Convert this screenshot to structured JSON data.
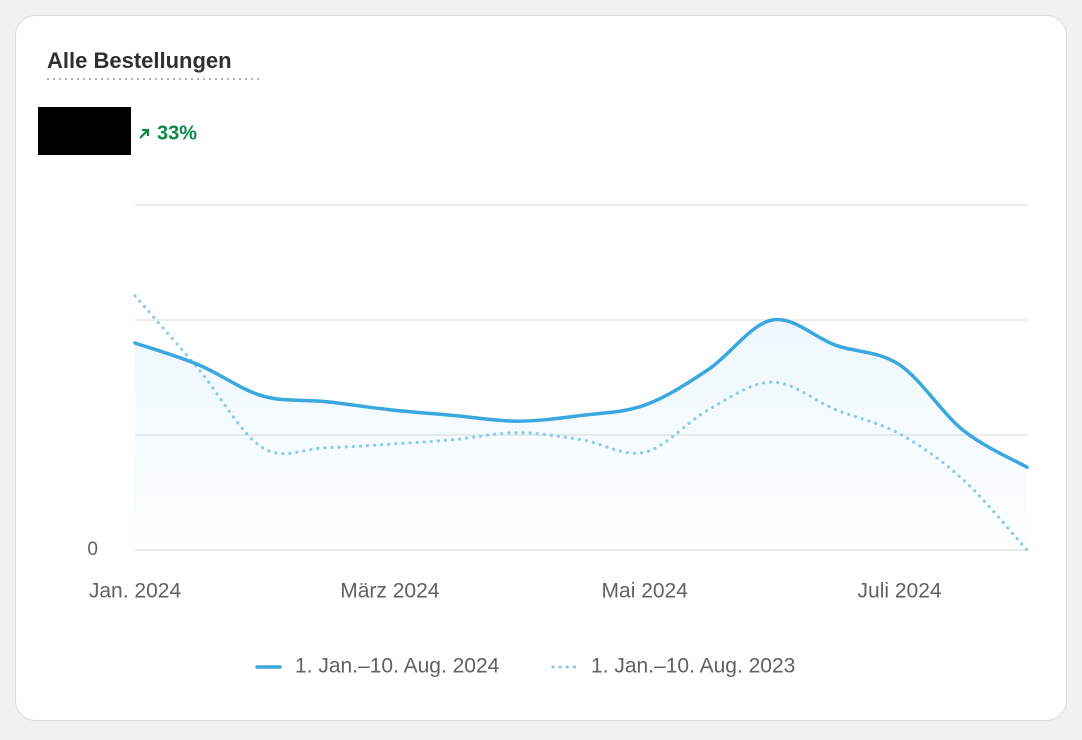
{
  "header": {
    "title": "Alle Bestellungen",
    "change": "33%"
  },
  "chart_data": {
    "type": "line",
    "categories": [
      "Jan. 2024",
      null,
      null,
      null,
      "März 2024",
      null,
      null,
      null,
      "Mai 2024",
      null,
      null,
      null,
      "Juli 2024",
      null,
      null
    ],
    "series": [
      {
        "name": "1. Jan.–10. Aug. 2024",
        "color": "#3aa7de",
        "style": "solid",
        "values": [
          1.8,
          1.61,
          1.34,
          1.29,
          1.22,
          1.17,
          1.12,
          1.17,
          1.26,
          1.57,
          2.0,
          1.78,
          1.61,
          1.04,
          0.72
        ]
      },
      {
        "name": "1. Jan.–10. Aug. 2023",
        "color": "#8ccbee",
        "style": "dotted",
        "values": [
          2.21,
          1.57,
          0.89,
          0.89,
          0.92,
          0.96,
          1.02,
          0.96,
          0.85,
          1.22,
          1.46,
          1.22,
          1.01,
          0.61,
          0
        ]
      }
    ],
    "ylim": [
      0,
      3
    ],
    "yticks": [
      0,
      {
        "value": 1,
        "label": null
      },
      {
        "value": 2,
        "label": null
      },
      {
        "value": 3,
        "label": null
      }
    ],
    "grid": true,
    "area": true
  }
}
